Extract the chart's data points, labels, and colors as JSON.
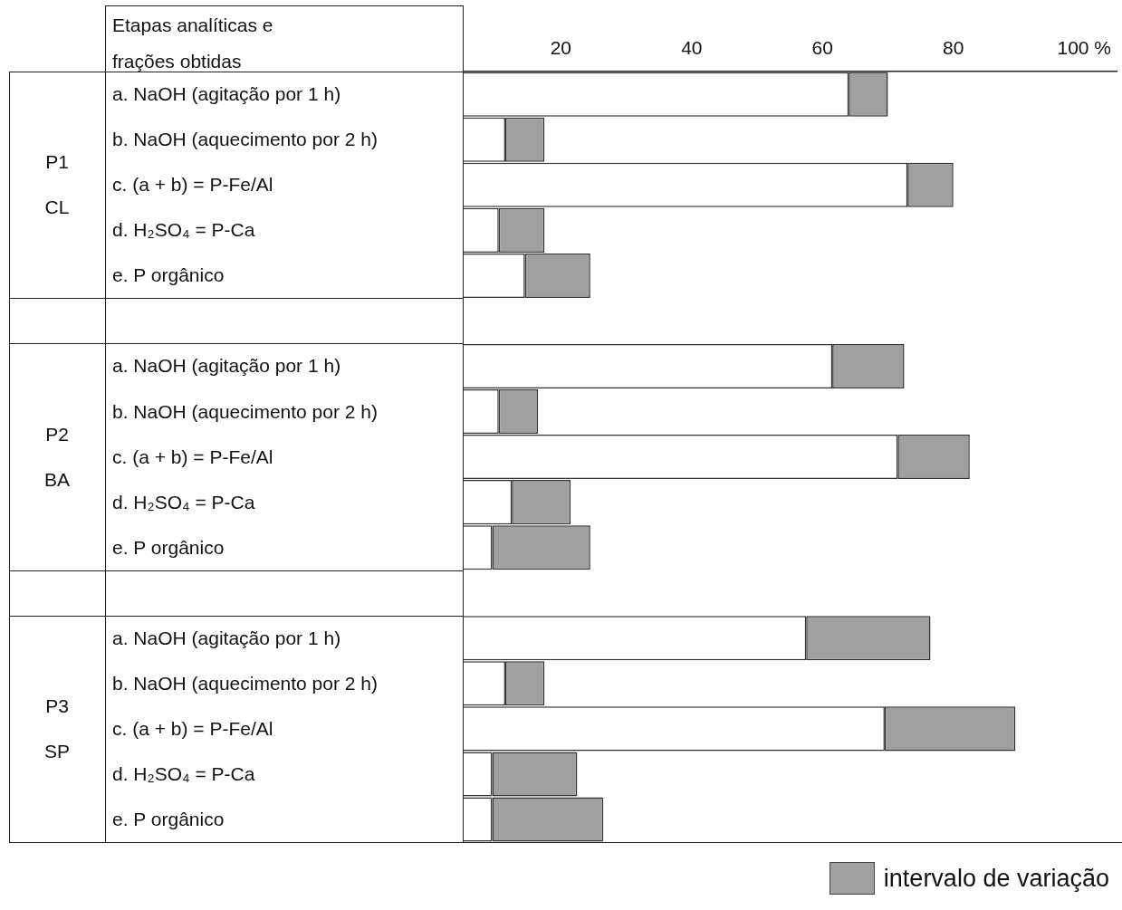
{
  "chart_data": {
    "type": "bar",
    "orientation": "horizontal",
    "stacked": true,
    "ylabel": "Etapas analíticas e frações obtidas",
    "categories": [
      "a. NaOH (agitação por 1 h)",
      "b. NaOH (aquecimento por 2 h)",
      "c. (a + b) = P-Fe/Al",
      "d. H₂SO₄ = P-Ca",
      "e. P orgânico",
      null,
      "a. NaOH (agitação por 1 h)",
      "b. NaOH (aquecimento por 2 h)",
      "c. (a + b) = P-Fe/Al",
      "d. H₂SO₄ = P-Ca",
      "e. P orgânico",
      null,
      "a. NaOH (agitação por 1 h)",
      "b. NaOH (aquecimento por 2 h)",
      "c. (a + b) = P-Fe/Al",
      "d. H₂SO₄ = P-Ca",
      "e. P orgânico"
    ],
    "series": [
      {
        "color": "#ffffff",
        "values": [
          64,
          11.5,
          73,
          10.5,
          14.5,
          null,
          61.5,
          10.5,
          71.5,
          12.5,
          9.5,
          null,
          57.5,
          11.5,
          69.5,
          9.5,
          9.5
        ]
      },
      {
        "name": "intervalo de variação",
        "color": "#a0a0a0",
        "values": [
          6,
          6,
          7,
          7,
          10,
          null,
          11,
          6,
          11,
          9,
          15,
          null,
          19,
          6,
          20,
          13,
          17
        ]
      }
    ],
    "xlim": [
      5,
      105
    ],
    "xticks": [
      20,
      40,
      60,
      80,
      {
        "value": 100,
        "label": "100 %"
      }
    ],
    "annotations": [
      "P1",
      "CL",
      "P2",
      "BA",
      "P3",
      "SP"
    ],
    "legend": "bottom right",
    "grid": false
  }
}
